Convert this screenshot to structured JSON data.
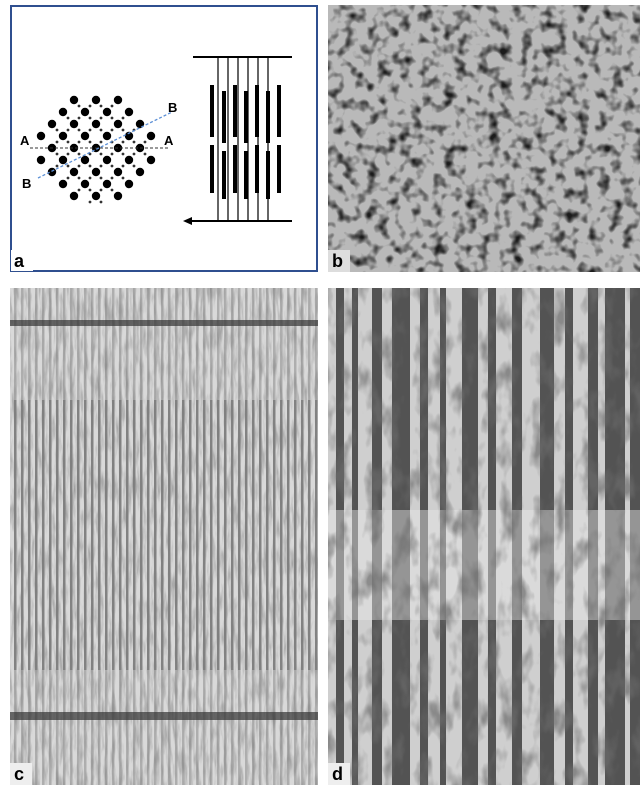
{
  "panels": {
    "a": {
      "label": "a",
      "diagram": {
        "labels": [
          "A",
          "A",
          "B",
          "B"
        ]
      }
    },
    "b": {
      "label": "b"
    },
    "c": {
      "label": "c"
    },
    "d": {
      "label": "d"
    }
  }
}
